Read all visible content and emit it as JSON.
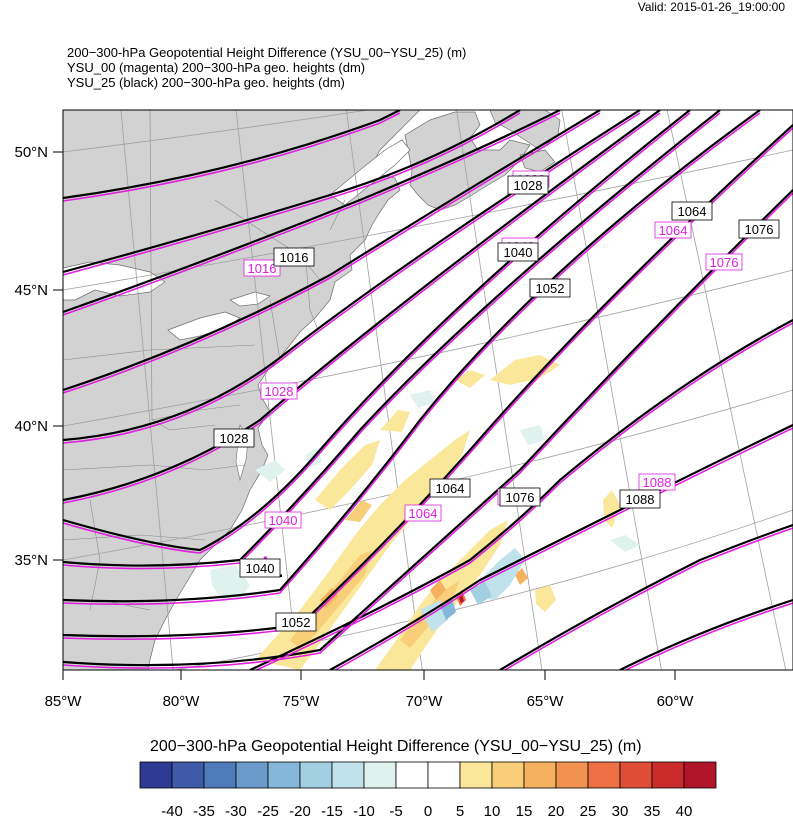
{
  "header": {
    "valid": "Valid: 2015-01-26_19:00:00",
    "title_lines": [
      "200−300-hPa Geopotential Height Difference (YSU_00−YSU_25)   (m)",
      "YSU_00 (magenta) 200−300-hPa geo. heights   (dm)",
      "YSU_25 (black) 200−300-hPa geo. heights   (dm)"
    ]
  },
  "map": {
    "lat_labels": [
      "50°N",
      "45°N",
      "40°N",
      "35°N"
    ],
    "lon_labels": [
      "85°W",
      "80°W",
      "75°W",
      "70°W",
      "65°W",
      "60°W"
    ],
    "black_contour_labels": [
      "1016",
      "1028",
      "1028",
      "1040",
      "1040",
      "1052",
      "1052",
      "1064",
      "1064",
      "1076",
      "1076",
      "1088"
    ],
    "magenta_contour_labels": [
      "1016",
      "1028",
      "1028",
      "1040",
      "1040",
      "1052",
      "1064",
      "1064",
      "1076",
      "1076",
      "1088"
    ],
    "low_marker": "L",
    "colors": {
      "land": "#d2d2d2",
      "ocean": "#ffffff",
      "black_contour": "#000000",
      "magenta_contour": "#e020e0",
      "grid": "#9a9a9a"
    }
  },
  "colorbar": {
    "title": "200−300-hPa Geopotential Height Difference (YSU_00−YSU_25)  (m)",
    "colors": [
      "#2e3b94",
      "#3e5aa8",
      "#4f7bbb",
      "#6a9bca",
      "#84b7d8",
      "#a2cfe2",
      "#c0e2ea",
      "#dff2ee",
      "#ffffff",
      "#ffffff",
      "#fbe79a",
      "#f8cf78",
      "#f6b15e",
      "#f29250",
      "#ec7044",
      "#e04d37",
      "#cb2b2b",
      "#b0152a"
    ],
    "tick_labels": [
      "-40",
      "-35",
      "-30",
      "-25",
      "-20",
      "-15",
      "-10",
      "-5",
      "0",
      "5",
      "10",
      "15",
      "20",
      "25",
      "30",
      "35",
      "40"
    ]
  }
}
